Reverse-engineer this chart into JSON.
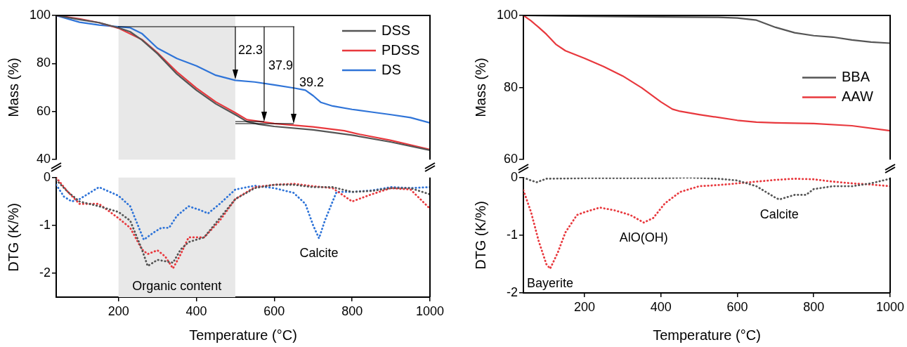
{
  "chart_data": [
    {
      "type": "line",
      "ylabel": "Mass (%)",
      "xlim": [
        40,
        1000
      ],
      "ylim": [
        40,
        100
      ],
      "yticks": [
        40,
        60,
        80,
        100
      ],
      "tick_labels": "y",
      "grid": false,
      "marker": "none",
      "legend": "top right",
      "bands": [
        {
          "axis": "x",
          "from": 200,
          "to": 500,
          "color": "#e8e8e8"
        }
      ],
      "annotations": [
        "22.3",
        "37.9",
        "39.2"
      ],
      "series": [
        {
          "name": "DSS",
          "color": "#555555",
          "line_style": "solid",
          "x": [
            40,
            100,
            150,
            200,
            230,
            260,
            300,
            350,
            400,
            450,
            500,
            530,
            560,
            600,
            700,
            800,
            900,
            1000
          ],
          "values": [
            100,
            98.3,
            97,
            94.9,
            93.2,
            89.8,
            84.1,
            75.6,
            68.9,
            63.2,
            58.7,
            55.8,
            54.7,
            53.8,
            52.4,
            50.2,
            47.3,
            43.9
          ]
        },
        {
          "name": "PDSS",
          "color": "#e8383d",
          "line_style": "solid",
          "x": [
            40,
            100,
            150,
            200,
            260,
            300,
            350,
            400,
            450,
            500,
            530,
            600,
            700,
            780,
            820,
            900,
            1000
          ],
          "values": [
            100,
            98.6,
            97,
            94.7,
            90,
            84.5,
            76.5,
            69.8,
            64,
            59.5,
            56.6,
            55,
            53.6,
            52,
            50.5,
            48,
            44.2
          ]
        },
        {
          "name": "DS",
          "color": "#2f74d8",
          "line_style": "solid",
          "x": [
            40,
            100,
            150,
            200,
            230,
            260,
            300,
            350,
            400,
            450,
            500,
            550,
            600,
            650,
            680,
            700,
            720,
            750,
            800,
            850,
            900,
            950,
            1000
          ],
          "values": [
            100,
            97.2,
            96,
            95.3,
            94.9,
            92.5,
            86.4,
            82.1,
            79,
            75.1,
            73,
            72.3,
            71.1,
            69.8,
            68.9,
            66.6,
            63.8,
            62.3,
            60.9,
            59.8,
            58.7,
            57.5,
            55.3
          ]
        }
      ]
    },
    {
      "type": "line",
      "xlabel": "Temperature (°C)",
      "ylabel": "DTG (K/%)",
      "xlim": [
        40,
        1000
      ],
      "ylim": [
        -2.5,
        0
      ],
      "xticks": [
        200,
        400,
        600,
        800,
        1000
      ],
      "yticks": [
        -2,
        -1,
        0
      ],
      "grid": false,
      "marker": "none",
      "bands": [
        {
          "axis": "x",
          "from": 200,
          "to": 500,
          "color": "#e8e8e8",
          "label": "Organic content"
        }
      ],
      "annotations": [
        {
          "text": "Calcite",
          "x": 715,
          "y": -1.27
        }
      ],
      "series": [
        {
          "color": "#555555",
          "line_style": "dotted",
          "x": [
            40,
            70,
            100,
            150,
            200,
            230,
            260,
            275,
            300,
            320,
            340,
            360,
            380,
            420,
            460,
            500,
            550,
            600,
            650,
            700,
            750,
            800,
            850,
            900,
            950,
            1000
          ],
          "values": [
            -0.05,
            -0.3,
            -0.5,
            -0.6,
            -0.72,
            -0.9,
            -1.5,
            -1.85,
            -1.72,
            -1.75,
            -1.78,
            -1.5,
            -1.35,
            -1.25,
            -0.85,
            -0.45,
            -0.22,
            -0.15,
            -0.15,
            -0.2,
            -0.2,
            -0.3,
            -0.28,
            -0.22,
            -0.22,
            -0.35
          ]
        },
        {
          "color": "#e8383d",
          "line_style": "dotted",
          "x": [
            40,
            70,
            100,
            150,
            200,
            230,
            260,
            275,
            300,
            320,
            340,
            360,
            380,
            420,
            460,
            500,
            550,
            600,
            650,
            700,
            750,
            800,
            850,
            900,
            950,
            1000
          ],
          "values": [
            0,
            -0.3,
            -0.55,
            -0.55,
            -0.85,
            -1.05,
            -1.5,
            -1.6,
            -1.52,
            -1.65,
            -1.9,
            -1.6,
            -1.25,
            -1.25,
            -0.9,
            -0.45,
            -0.2,
            -0.15,
            -0.13,
            -0.18,
            -0.22,
            -0.5,
            -0.35,
            -0.22,
            -0.25,
            -0.65
          ]
        },
        {
          "color": "#2f74d8",
          "line_style": "dotted",
          "x": [
            40,
            60,
            80,
            100,
            150,
            200,
            230,
            250,
            265,
            290,
            310,
            330,
            350,
            380,
            410,
            430,
            460,
            500,
            550,
            600,
            650,
            680,
            700,
            715,
            730,
            760,
            800,
            850,
            900,
            950,
            1000
          ],
          "values": [
            -0.15,
            -0.4,
            -0.5,
            -0.45,
            -0.2,
            -0.38,
            -0.6,
            -1,
            -1.3,
            -1.15,
            -1.05,
            -1.05,
            -0.8,
            -0.6,
            -0.68,
            -0.75,
            -0.55,
            -0.25,
            -0.17,
            -0.22,
            -0.32,
            -0.55,
            -1,
            -1.27,
            -0.9,
            -0.3,
            -0.3,
            -0.27,
            -0.2,
            -0.22,
            -0.2
          ]
        }
      ]
    },
    {
      "type": "line",
      "ylabel": "Mass (%)",
      "xlim": [
        40,
        1000
      ],
      "ylim": [
        60,
        100
      ],
      "yticks": [
        60,
        80,
        100
      ],
      "tick_labels": "y",
      "grid": false,
      "marker": "none",
      "legend": "right",
      "series": [
        {
          "name": "BBA",
          "color": "#555555",
          "line_style": "solid",
          "x": [
            40,
            200,
            400,
            550,
            600,
            650,
            700,
            750,
            800,
            850,
            900,
            950,
            1000
          ],
          "values": [
            100,
            99.8,
            99.6,
            99.5,
            99.3,
            98.7,
            96.7,
            95.2,
            94.4,
            94,
            93.2,
            92.6,
            92.3
          ]
        },
        {
          "name": "AAW",
          "color": "#e8383d",
          "line_style": "solid",
          "x": [
            40,
            60,
            80,
            100,
            125,
            150,
            200,
            250,
            300,
            350,
            400,
            430,
            450,
            500,
            600,
            650,
            700,
            800,
            900,
            1000
          ],
          "values": [
            100,
            98.5,
            96.7,
            94.8,
            92,
            90.2,
            88.1,
            85.8,
            83.2,
            79.9,
            76,
            74,
            73.4,
            72.5,
            70.9,
            70.4,
            70.2,
            70,
            69.4,
            68
          ]
        }
      ]
    },
    {
      "type": "line",
      "xlabel": "Temperature (°C)",
      "ylabel": "DTG (K/%)",
      "xlim": [
        40,
        1000
      ],
      "ylim": [
        -2,
        0
      ],
      "xticks": [
        200,
        400,
        600,
        800,
        1000
      ],
      "yticks": [
        -2,
        -1,
        0
      ],
      "grid": false,
      "marker": "none",
      "annotations": [
        {
          "text": "Bayerite",
          "x": 110,
          "y": -1.58
        },
        {
          "text": "AlO(OH)",
          "x": 355,
          "y": -0.78
        },
        {
          "text": "Calcite",
          "x": 710,
          "y": -0.38
        }
      ],
      "series": [
        {
          "color": "#555555",
          "line_style": "dotted",
          "x": [
            40,
            60,
            75,
            100,
            200,
            300,
            400,
            475,
            550,
            600,
            650,
            700,
            710,
            750,
            780,
            800,
            850,
            900,
            950,
            1000
          ],
          "values": [
            0,
            -0.05,
            -0.08,
            -0.02,
            -0.01,
            -0.01,
            -0.01,
            0,
            -0.02,
            -0.05,
            -0.15,
            -0.35,
            -0.38,
            -0.3,
            -0.3,
            -0.2,
            -0.15,
            -0.15,
            -0.1,
            -0.02
          ]
        },
        {
          "color": "#e8383d",
          "line_style": "dotted",
          "x": [
            40,
            60,
            80,
            100,
            110,
            130,
            150,
            180,
            200,
            240,
            280,
            320,
            355,
            380,
            410,
            450,
            500,
            550,
            600,
            650,
            700,
            750,
            800,
            850,
            900,
            950,
            1000
          ],
          "values": [
            -0.22,
            -0.6,
            -1.1,
            -1.5,
            -1.58,
            -1.3,
            -0.95,
            -0.65,
            -0.6,
            -0.52,
            -0.57,
            -0.65,
            -0.78,
            -0.7,
            -0.45,
            -0.25,
            -0.15,
            -0.13,
            -0.1,
            -0.07,
            -0.04,
            -0.02,
            -0.03,
            -0.07,
            -0.1,
            -0.12,
            -0.15
          ]
        }
      ]
    }
  ]
}
